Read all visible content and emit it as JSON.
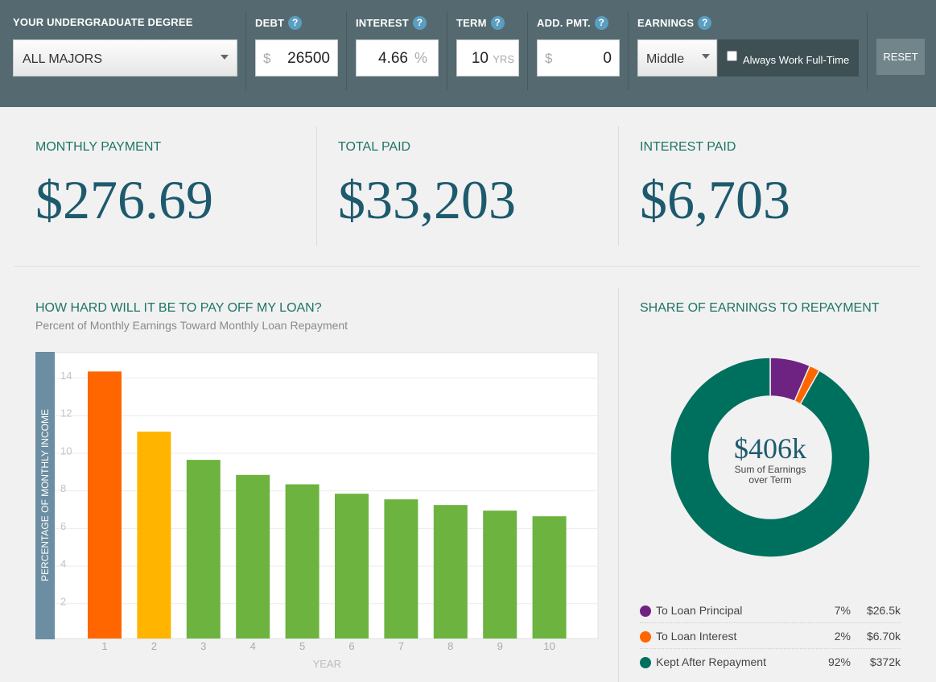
{
  "controls": {
    "degree": {
      "label": "YOUR UNDERGRADUATE DEGREE",
      "value": "ALL MAJORS"
    },
    "debt": {
      "label": "DEBT",
      "prefix": "$",
      "value": "26500"
    },
    "interest": {
      "label": "INTEREST",
      "value": "4.66",
      "suffix": "%"
    },
    "term": {
      "label": "TERM",
      "value": "10",
      "suffix": "YRS"
    },
    "add_pmt": {
      "label": "ADD. PMT.",
      "prefix": "$",
      "value": "0"
    },
    "earnings": {
      "label": "EARNINGS",
      "value": "Middle",
      "full_time_label": "Always Work Full-Time",
      "full_time_checked": false
    },
    "help_glyph": "?",
    "reset_label": "RESET"
  },
  "stats": {
    "monthly": {
      "label": "MONTHLY PAYMENT",
      "value": "$276.69"
    },
    "total": {
      "label": "TOTAL PAID",
      "value": "$33,203"
    },
    "interest": {
      "label": "INTEREST PAID",
      "value": "$6,703"
    }
  },
  "bar_section": {
    "title": "HOW HARD WILL IT BE TO PAY OFF MY LOAN?",
    "subtitle": "Percent of Monthly Earnings Toward Monthly Loan Repayment"
  },
  "donut_section": {
    "title": "SHARE OF EARNINGS TO REPAYMENT",
    "center_value": "$406k",
    "center_label_1": "Sum of Earnings",
    "center_label_2": "over Term",
    "legend": [
      {
        "name": "To Loan Principal",
        "pct": "7%",
        "amount": "$26.5k",
        "color": "#6e2383"
      },
      {
        "name": "To Loan Interest",
        "pct": "2%",
        "amount": "$6.70k",
        "color": "#ff6600"
      },
      {
        "name": "Kept After Repayment",
        "pct": "92%",
        "amount": "$372k",
        "color": "#00705e"
      }
    ]
  },
  "chart_data": [
    {
      "type": "bar",
      "title": "HOW HARD WILL IT BE TO PAY OFF MY LOAN?",
      "subtitle": "Percent of Monthly Earnings Toward Monthly Loan Repayment",
      "xlabel": "YEAR",
      "ylabel": "PERCENTAGE OF MONTHLY INCOME",
      "categories": [
        "1",
        "2",
        "3",
        "4",
        "5",
        "6",
        "7",
        "8",
        "9",
        "10"
      ],
      "values": [
        14.2,
        11.0,
        9.5,
        8.7,
        8.2,
        7.7,
        7.4,
        7.1,
        6.8,
        6.5
      ],
      "colors": [
        "#ff6600",
        "#ffb400",
        "#6db33f",
        "#6db33f",
        "#6db33f",
        "#6db33f",
        "#6db33f",
        "#6db33f",
        "#6db33f",
        "#6db33f"
      ],
      "yticks": [
        2,
        4,
        6,
        8,
        10,
        12,
        14
      ],
      "ylim": [
        0,
        15.2
      ],
      "grid": true
    },
    {
      "type": "pie",
      "title": "SHARE OF EARNINGS TO REPAYMENT",
      "categories": [
        "To Loan Principal",
        "To Loan Interest",
        "Kept After Repayment"
      ],
      "values": [
        6.5,
        1.7,
        91.8
      ],
      "colors": [
        "#6e2383",
        "#ff6600",
        "#00705e"
      ]
    }
  ]
}
